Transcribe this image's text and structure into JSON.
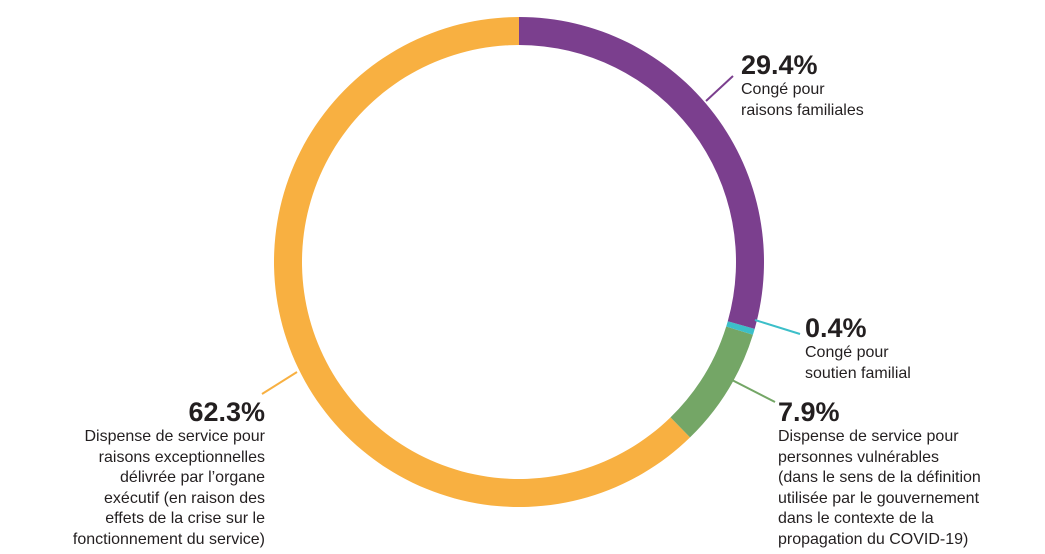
{
  "chart_data": {
    "type": "donut",
    "categories": [
      "Congé pour\nraisons familiales",
      "Congé pour\nsoutien familial",
      "Dispense de service pour\npersonnes vulnérables\n(dans le sens de la définition\nutilisée par le gouvernement\ndans le contexte de la\npropagation du COVID-19)",
      "Dispense de service pour\nraisons exceptionnelles\ndélivrée par l’organe\nexécutif (en raison des\neffets de la crise sur le\nfonctionnement du service)"
    ],
    "values": [
      29.4,
      0.4,
      7.9,
      62.3
    ],
    "value_labels": [
      "29.4%",
      "0.4%",
      "7.9%",
      "62.3%"
    ],
    "colors": [
      "#7b3f8e",
      "#3cbfc9",
      "#74a666",
      "#f8b041"
    ]
  }
}
